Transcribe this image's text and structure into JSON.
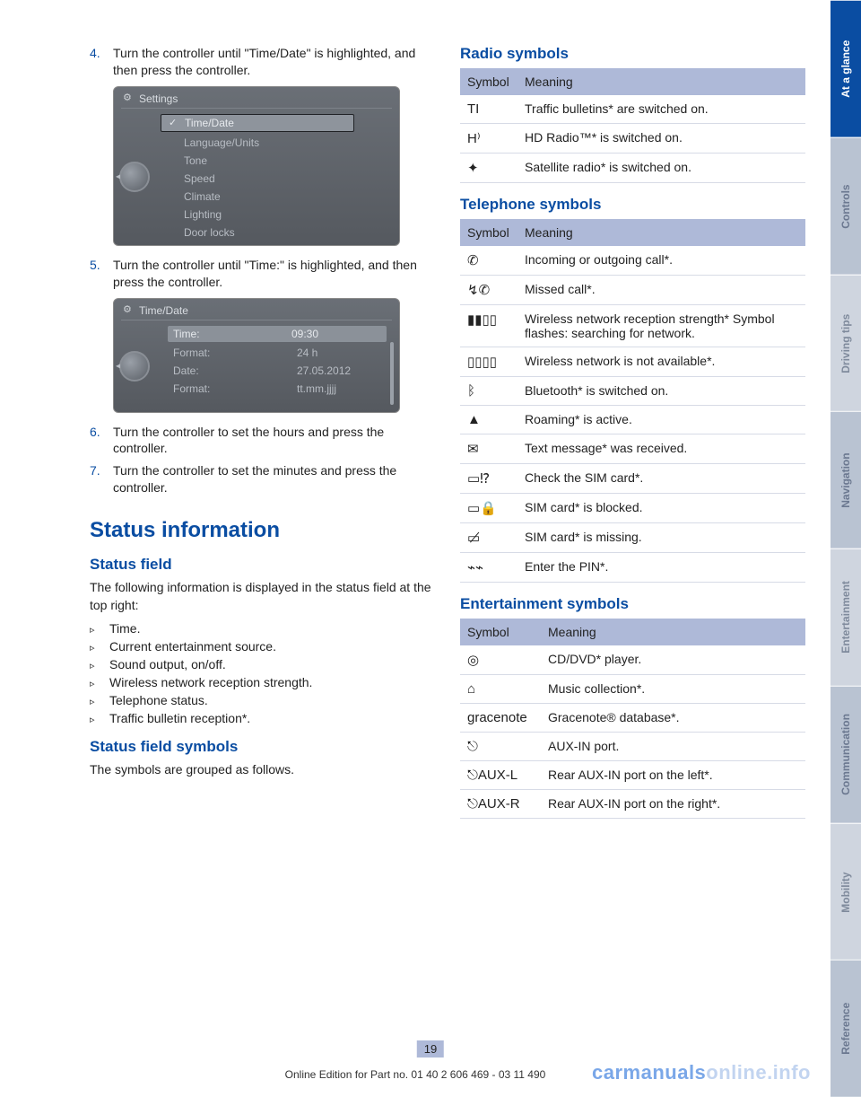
{
  "steps": {
    "s4": {
      "num": "4.",
      "text": "Turn the controller until \"Time/Date\" is highlighted, and then press the controller."
    },
    "s5": {
      "num": "5.",
      "text": "Turn the controller until \"Time:\" is highlighted, and then press the controller."
    },
    "s6": {
      "num": "6.",
      "text": "Turn the controller to set the hours and press the controller."
    },
    "s7": {
      "num": "7.",
      "text": "Turn the controller to set the minutes and press the controller."
    }
  },
  "shot1": {
    "title": "Settings",
    "items": [
      "Time/Date",
      "Language/Units",
      "Tone",
      "Speed",
      "Climate",
      "Lighting",
      "Door locks"
    ]
  },
  "shot2": {
    "title": "Time/Date",
    "rows": [
      {
        "label": "Time:",
        "val": "09:30"
      },
      {
        "label": "Format:",
        "val": "24 h"
      },
      {
        "label": "Date:",
        "val": "27.05.2012"
      },
      {
        "label": "Format:",
        "val": "tt.mm.jjjj"
      }
    ]
  },
  "section": {
    "title": "Status information"
  },
  "status_field": {
    "heading": "Status field",
    "intro": "The following information is displayed in the status field at the top right:",
    "items": [
      "Time.",
      "Current entertainment source.",
      "Sound output, on/off.",
      "Wireless network reception strength.",
      "Telephone status.",
      "Traffic bulletin reception*."
    ]
  },
  "status_symbols": {
    "heading": "Status field symbols",
    "text": "The symbols are grouped as follows."
  },
  "radio": {
    "heading": "Radio symbols",
    "th1": "Symbol",
    "th2": "Meaning",
    "rows": [
      {
        "icon": "TI",
        "text": "Traffic bulletins* are switched on."
      },
      {
        "icon": "H⁾",
        "text": "HD Radio™* is switched on."
      },
      {
        "icon": "✦",
        "text": "Satellite radio* is switched on."
      }
    ]
  },
  "telephone": {
    "heading": "Telephone symbols",
    "th1": "Symbol",
    "th2": "Meaning",
    "rows": [
      {
        "icon": "✆",
        "text": "Incoming or outgoing call*."
      },
      {
        "icon": "↯✆",
        "text": "Missed call*."
      },
      {
        "icon": "▮▮▯▯",
        "text": "Wireless network reception strength* Symbol flashes: searching for network."
      },
      {
        "icon": "▯▯▯▯",
        "text": "Wireless network is not available*."
      },
      {
        "icon": "ᛒ",
        "text": "Bluetooth* is switched on."
      },
      {
        "icon": "▲",
        "text": "Roaming* is active."
      },
      {
        "icon": "✉",
        "text": "Text message* was received."
      },
      {
        "icon": "▭⁉",
        "text": "Check the SIM card*."
      },
      {
        "icon": "▭🔒",
        "text": "SIM card* is blocked."
      },
      {
        "icon": "▭̸",
        "text": "SIM card* is missing."
      },
      {
        "icon": "⌁⌁",
        "text": "Enter the PIN*."
      }
    ]
  },
  "entertainment": {
    "heading": "Entertainment symbols",
    "th1": "Symbol",
    "th2": "Meaning",
    "rows": [
      {
        "icon": "◎",
        "text": "CD/DVD* player."
      },
      {
        "icon": "⌂",
        "text": "Music collection*."
      },
      {
        "icon": "gracenote",
        "text": "Gracenote® database*."
      },
      {
        "icon": "⎋",
        "text": "AUX-IN port."
      },
      {
        "icon": "⎋AUX-L",
        "text": "Rear AUX-IN port on the left*."
      },
      {
        "icon": "⎋AUX-R",
        "text": "Rear AUX-IN port on the right*."
      }
    ]
  },
  "tabs": [
    "At a glance",
    "Controls",
    "Driving tips",
    "Navigation",
    "Entertainment",
    "Communication",
    "Mobility",
    "Reference"
  ],
  "footer": {
    "pagenum": "19",
    "line": "Online Edition for Part no. 01 40 2 606 469 - 03 11 490"
  },
  "watermark": {
    "a": "carmanuals",
    "b": "online.info"
  }
}
